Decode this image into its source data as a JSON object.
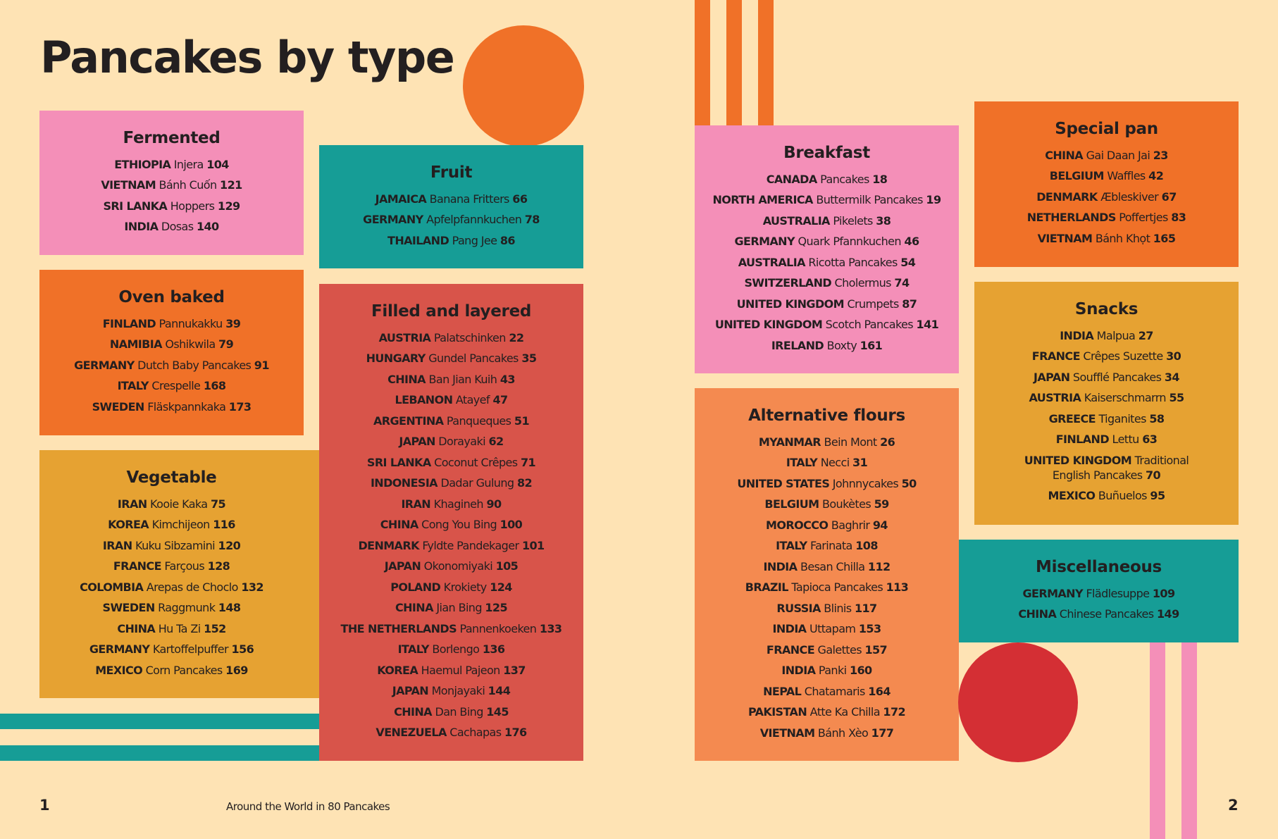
{
  "title": "Pancakes by type",
  "footer": {
    "page_left": "1",
    "book_title": "Around the World in 80 Pancakes",
    "page_right": "2"
  },
  "colors": {
    "background": "#FEE3B4",
    "pink": "#F48FB8",
    "teal": "#169D96",
    "orange": "#F07128",
    "mustard": "#E6A232",
    "red": "#D8544A",
    "peach": "#F48A50",
    "circle_red": "#D42F34"
  },
  "categories": {
    "fermented": {
      "title": "Fermented",
      "items": [
        {
          "country": "ETHIOPIA",
          "dish": "Injera",
          "page": "104"
        },
        {
          "country": "VIETNAM",
          "dish": "Bánh Cuốn",
          "page": "121"
        },
        {
          "country": "SRI LANKA",
          "dish": "Hoppers",
          "page": "129"
        },
        {
          "country": "INDIA",
          "dish": "Dosas",
          "page": "140"
        }
      ]
    },
    "fruit": {
      "title": "Fruit",
      "items": [
        {
          "country": "JAMAICA",
          "dish": "Banana Fritters",
          "page": "66"
        },
        {
          "country": "GERMANY",
          "dish": "Apfelpfannkuchen",
          "page": "78"
        },
        {
          "country": "THAILAND",
          "dish": "Pang Jee",
          "page": "86"
        }
      ]
    },
    "oven_baked": {
      "title": "Oven baked",
      "items": [
        {
          "country": "FINLAND",
          "dish": "Pannukakku",
          "page": "39"
        },
        {
          "country": "NAMIBIA",
          "dish": "Oshikwila",
          "page": "79"
        },
        {
          "country": "GERMANY",
          "dish": "Dutch Baby Pancakes",
          "page": "91"
        },
        {
          "country": "ITALY",
          "dish": "Crespelle",
          "page": "168"
        },
        {
          "country": "SWEDEN",
          "dish": "Fläskpannkaka",
          "page": "173"
        }
      ]
    },
    "filled_layered": {
      "title": "Filled and layered",
      "items": [
        {
          "country": "AUSTRIA",
          "dish": "Palatschinken",
          "page": "22"
        },
        {
          "country": "HUNGARY",
          "dish": "Gundel Pancakes",
          "page": "35"
        },
        {
          "country": "CHINA",
          "dish": "Ban Jian Kuih",
          "page": "43"
        },
        {
          "country": "LEBANON",
          "dish": "Atayef",
          "page": "47"
        },
        {
          "country": "ARGENTINA",
          "dish": "Panqueques",
          "page": "51"
        },
        {
          "country": "JAPAN",
          "dish": "Dorayaki",
          "page": "62"
        },
        {
          "country": "SRI LANKA",
          "dish": "Coconut Crêpes",
          "page": "71"
        },
        {
          "country": "INDONESIA",
          "dish": "Dadar Gulung",
          "page": "82"
        },
        {
          "country": "IRAN",
          "dish": "Khagineh",
          "page": "90"
        },
        {
          "country": "CHINA",
          "dish": "Cong You Bing",
          "page": "100"
        },
        {
          "country": "DENMARK",
          "dish": "Fyldte Pandekager",
          "page": "101"
        },
        {
          "country": "JAPAN",
          "dish": "Okonomiyaki",
          "page": "105"
        },
        {
          "country": "POLAND",
          "dish": "Krokiety",
          "page": "124"
        },
        {
          "country": "CHINA",
          "dish": "Jian Bing",
          "page": "125"
        },
        {
          "country": "THE NETHERLANDS",
          "dish": "Pannenkoeken",
          "page": "133"
        },
        {
          "country": "ITALY",
          "dish": "Borlengo",
          "page": "136"
        },
        {
          "country": "KOREA",
          "dish": "Haemul Pajeon",
          "page": "137"
        },
        {
          "country": "JAPAN",
          "dish": "Monjayaki",
          "page": "144"
        },
        {
          "country": "CHINA",
          "dish": "Dan Bing",
          "page": "145"
        },
        {
          "country": "VENEZUELA",
          "dish": "Cachapas",
          "page": "176"
        }
      ]
    },
    "vegetable": {
      "title": "Vegetable",
      "items": [
        {
          "country": "IRAN",
          "dish": "Kooie Kaka",
          "page": "75"
        },
        {
          "country": "KOREA",
          "dish": "Kimchijeon",
          "page": "116"
        },
        {
          "country": "IRAN",
          "dish": "Kuku Sibzamini",
          "page": "120"
        },
        {
          "country": "FRANCE",
          "dish": "Farçous",
          "page": "128"
        },
        {
          "country": "COLOMBIA",
          "dish": "Arepas de Choclo",
          "page": "132"
        },
        {
          "country": "SWEDEN",
          "dish": "Raggmunk",
          "page": "148"
        },
        {
          "country": "CHINA",
          "dish": "Hu Ta Zi",
          "page": "152"
        },
        {
          "country": "GERMANY",
          "dish": "Kartoffelpuffer",
          "page": "156"
        },
        {
          "country": "MEXICO",
          "dish": "Corn Pancakes",
          "page": "169"
        }
      ]
    },
    "breakfast": {
      "title": "Breakfast",
      "items": [
        {
          "country": "CANADA",
          "dish": "Pancakes",
          "page": "18"
        },
        {
          "country": "NORTH AMERICA",
          "dish": "Buttermilk Pancakes",
          "page": "19"
        },
        {
          "country": "AUSTRALIA",
          "dish": "Pikelets",
          "page": "38"
        },
        {
          "country": "GERMANY",
          "dish": "Quark Pfannkuchen",
          "page": "46"
        },
        {
          "country": "AUSTRALIA",
          "dish": "Ricotta Pancakes",
          "page": "54"
        },
        {
          "country": "SWITZERLAND",
          "dish": "Cholermus",
          "page": "74"
        },
        {
          "country": "UNITED KINGDOM",
          "dish": "Crumpets",
          "page": "87"
        },
        {
          "country": "UNITED KINGDOM",
          "dish": "Scotch Pancakes",
          "page": "141"
        },
        {
          "country": "IRELAND",
          "dish": "Boxty",
          "page": "161"
        }
      ]
    },
    "alternative_flours": {
      "title": "Alternative flours",
      "items": [
        {
          "country": "MYANMAR",
          "dish": "Bein Mont",
          "page": "26"
        },
        {
          "country": "ITALY",
          "dish": "Necci",
          "page": "31"
        },
        {
          "country": "UNITED STATES",
          "dish": "Johnnycakes",
          "page": "50"
        },
        {
          "country": "BELGIUM",
          "dish": "Boukètes",
          "page": "59"
        },
        {
          "country": "MOROCCO",
          "dish": "Baghrir",
          "page": "94"
        },
        {
          "country": "ITALY",
          "dish": "Farinata",
          "page": "108"
        },
        {
          "country": "INDIA",
          "dish": "Besan Chilla",
          "page": "112"
        },
        {
          "country": "BRAZIL",
          "dish": "Tapioca Pancakes",
          "page": "113"
        },
        {
          "country": "RUSSIA",
          "dish": "Blinis",
          "page": "117"
        },
        {
          "country": "INDIA",
          "dish": "Uttapam",
          "page": "153"
        },
        {
          "country": "FRANCE",
          "dish": "Galettes",
          "page": "157"
        },
        {
          "country": "INDIA",
          "dish": "Panki",
          "page": "160"
        },
        {
          "country": "NEPAL",
          "dish": "Chatamaris",
          "page": "164"
        },
        {
          "country": "PAKISTAN",
          "dish": "Atte Ka Chilla",
          "page": "172"
        },
        {
          "country": "VIETNAM",
          "dish": "Bánh Xèo",
          "page": "177"
        }
      ]
    },
    "special_pan": {
      "title": "Special pan",
      "items": [
        {
          "country": "CHINA",
          "dish": "Gai Daan Jai",
          "page": "23"
        },
        {
          "country": "BELGIUM",
          "dish": "Waffles",
          "page": "42"
        },
        {
          "country": "DENMARK",
          "dish": "Æbleskiver",
          "page": "67"
        },
        {
          "country": "NETHERLANDS",
          "dish": "Poffertjes",
          "page": "83"
        },
        {
          "country": "VIETNAM",
          "dish": "Bánh Khọt",
          "page": "165"
        }
      ]
    },
    "snacks": {
      "title": "Snacks",
      "items": [
        {
          "country": "INDIA",
          "dish": "Malpua",
          "page": "27"
        },
        {
          "country": "FRANCE",
          "dish": "Crêpes Suzette",
          "page": "30"
        },
        {
          "country": "JAPAN",
          "dish": "Soufflé Pancakes",
          "page": "34"
        },
        {
          "country": "AUSTRIA",
          "dish": "Kaiserschmarrn",
          "page": "55"
        },
        {
          "country": "GREECE",
          "dish": "Tiganites",
          "page": "58"
        },
        {
          "country": "FINLAND",
          "dish": "Lettu",
          "page": "63"
        },
        {
          "country": "UNITED KINGDOM",
          "dish": "Traditional English Pancakes",
          "page": "70"
        },
        {
          "country": "MEXICO",
          "dish": "Buñuelos",
          "page": "95"
        }
      ]
    },
    "miscellaneous": {
      "title": "Miscellaneous",
      "items": [
        {
          "country": "GERMANY",
          "dish": "Flädlesuppe",
          "page": "109"
        },
        {
          "country": "CHINA",
          "dish": "Chinese Pancakes",
          "page": "149"
        }
      ]
    }
  }
}
